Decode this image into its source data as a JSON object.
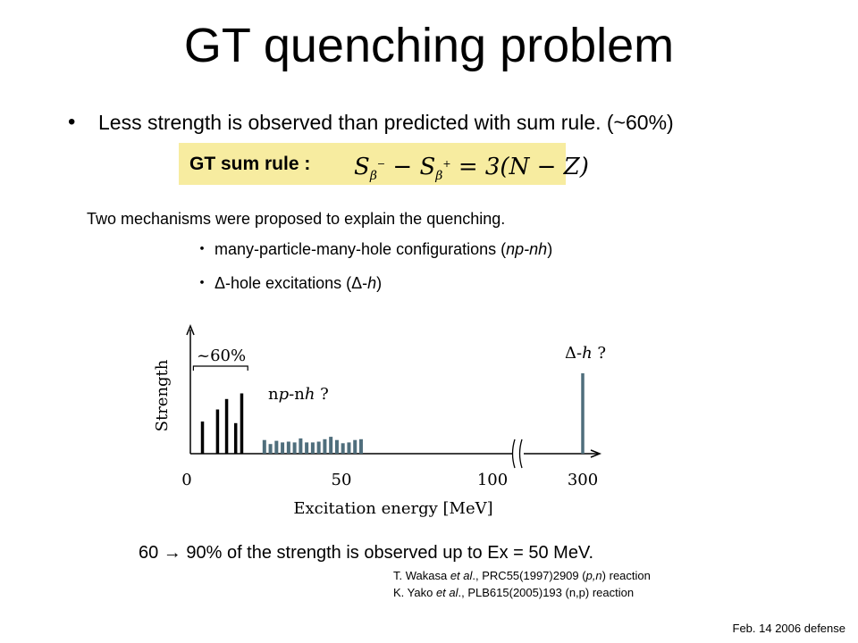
{
  "slide": {
    "title": "GT quenching problem",
    "bullet_symbol": "•",
    "bullet": "Less strength is observed than predicted  with sum rule. (~60%)",
    "sum_rule_label": "GT sum rule :",
    "sum_rule_formula": {
      "s1": "S",
      "sub1": "β",
      "sup1": "−",
      "minus": " − ",
      "s2": "S",
      "sub2": "β",
      "sup2": "+",
      "rhs": " = 3(N − Z)"
    },
    "mechanisms_intro": "Two mechanisms were proposed to explain the quenching.",
    "mechanism_1": {
      "prefix": "・ many-particle-many-hole configurations (",
      "italic": "np-nh",
      "suffix": ")"
    },
    "mechanism_2": {
      "prefix": "・ Δ-hole excitations (Δ-",
      "italic": "h",
      "suffix": ")"
    },
    "conclusion": "60 → 90% of the strength is observed up to Ex = 50 MeV.",
    "reference_1": {
      "author": "T. Wakasa ",
      "etal": "et al",
      "journal": "., PRC55(1997)2909  (",
      "reaction": "p,n",
      "suffix": ") reaction"
    },
    "reference_2": {
      "author": "K. Yako ",
      "etal": "et al",
      "journal": "., PLB615(2005)193      (n,p) reaction"
    },
    "footer": "Feb. 14 2006 defense"
  },
  "chart_data": {
    "type": "bar",
    "xlabel": "Excitation energy [MeV]",
    "ylabel": "Strength",
    "x_ticks": [
      "0",
      "50",
      "100",
      "300"
    ],
    "axis_break": "between 100 and 300",
    "series": [
      {
        "x": [
          4,
          9,
          12,
          15,
          17
        ],
        "values": [
          0.4,
          0.55,
          0.68,
          0.38,
          0.75
        ],
        "color": "#000000"
      },
      {
        "x": [
          24.5,
          26.5,
          28.5,
          30.5,
          32.5,
          34.5,
          36.5,
          38.5,
          40.5,
          42.5,
          44.5,
          46.5,
          48.5,
          50.5,
          52.5,
          54.5,
          56.5
        ],
        "values": [
          0.17,
          0.12,
          0.16,
          0.14,
          0.15,
          0.14,
          0.19,
          0.14,
          0.14,
          0.15,
          0.18,
          0.21,
          0.17,
          0.13,
          0.14,
          0.17,
          0.18
        ],
        "color": "#4f6e7c"
      },
      {
        "x": [
          300
        ],
        "values": [
          1.0
        ],
        "color": "#4f6e7c"
      }
    ],
    "annotations": [
      {
        "text": "~60%",
        "target": "bars 0–20 MeV"
      },
      {
        "text": "np-nh ?",
        "target": "bars 24–57 MeV"
      },
      {
        "text": "Δ-h ?",
        "target": "bar at 300 MeV"
      }
    ],
    "ylim": [
      0,
      1
    ]
  }
}
